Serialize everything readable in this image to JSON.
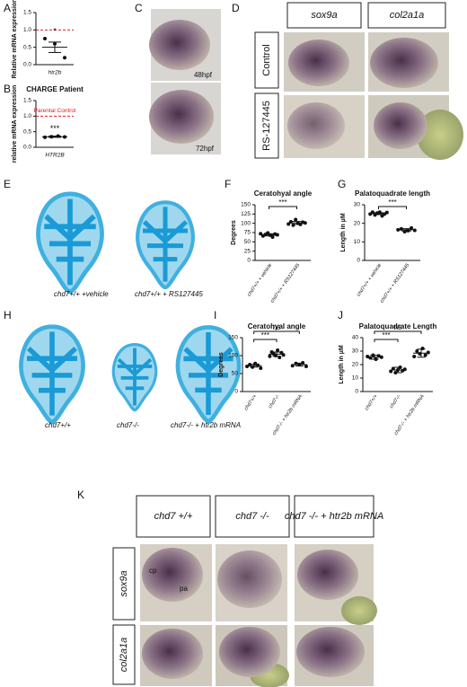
{
  "panel_labels": [
    "A",
    "B",
    "C",
    "D",
    "E",
    "F",
    "G",
    "H",
    "I",
    "J",
    "K"
  ],
  "panel_c": {
    "stages": [
      "48hpf",
      "72hpf"
    ]
  },
  "panel_d": {
    "columns": [
      "sox9a",
      "col2a1a"
    ],
    "rows": [
      "Control",
      "RS-127445"
    ]
  },
  "panel_e": {
    "labels": [
      "chd7+/+ +vehicle",
      "chd7+/+ + RS127445"
    ]
  },
  "panel_h": {
    "labels": [
      "chd7+/+",
      "chd7-/-",
      "chd7-/- + htr2b mRNA"
    ]
  },
  "panel_k": {
    "columns": [
      "chd7 +/+",
      "chd7 -/-",
      "chd7 -/- + htr2b mRNA"
    ],
    "rows": [
      "sox9a",
      "col2a1a"
    ],
    "annotations": [
      "cp",
      "pa"
    ]
  },
  "chart_data": [
    {
      "type": "dot",
      "y_label": "Relative mRNA expression",
      "categories": [
        "htr2b"
      ],
      "points": [
        [
          0.75,
          0.6,
          0.2
        ]
      ],
      "means": [
        0.5
      ],
      "errors": [
        0.15
      ],
      "color": "#111111",
      "ylim": [
        0,
        1.5
      ],
      "yticks": [
        {
          "value": 0,
          "label": "0.0"
        },
        {
          "value": 0.5,
          "label": "0.5"
        },
        {
          "value": 1,
          "label": "1.0"
        },
        {
          "value": 1.5,
          "label": "1.5"
        }
      ],
      "reference": {
        "value": 1,
        "color": "#e02020"
      },
      "brackets": [
        {
          "text": "*",
          "categories": [
            0
          ]
        }
      ]
    },
    {
      "type": "dot",
      "title": "CHARGE Patient",
      "y_label": "relative mRNA expression",
      "categories": [
        "HTR2B"
      ],
      "points": [
        [
          0.32,
          0.34,
          0.36,
          0.33
        ]
      ],
      "means": [
        0.34
      ],
      "errors": [
        0.02
      ],
      "color": "#111111",
      "ylim": [
        0,
        1.5
      ],
      "yticks": [
        {
          "value": 0,
          "label": "0.0"
        },
        {
          "value": 0.5,
          "label": "0.5"
        },
        {
          "value": 1,
          "label": "1.0"
        },
        {
          "value": 1.5,
          "label": "1.5"
        }
      ],
      "reference": {
        "value": 1,
        "label": "Parental Control",
        "color": "#e02020"
      },
      "brackets": [
        {
          "text": "***",
          "categories": [
            0
          ]
        }
      ]
    },
    {
      "type": "dot",
      "title": "Ceratohyal angle",
      "y_label": "Degrees",
      "categories": [
        "chd7+/+ + vehicle",
        "chd7+/+ + RS127445"
      ],
      "points": [
        [
          72,
          66,
          70,
          74,
          68,
          63,
          71,
          69
        ],
        [
          98,
          104,
          95,
          110,
          100,
          97,
          103,
          101
        ]
      ],
      "means": [
        69,
        101
      ],
      "errors": [
        3,
        4
      ],
      "color": "#111111",
      "ylim": [
        0,
        150
      ],
      "yticks": [
        0,
        25,
        50,
        75,
        100,
        125,
        150
      ],
      "brackets": [
        {
          "text": "***",
          "categories": [
            0,
            1
          ]
        }
      ]
    },
    {
      "type": "dot",
      "title": "Palatoquadrate length",
      "y_label": "Length in µM",
      "categories": [
        "chd7+/+ + vehicle",
        "chd7+/+ + RS127445"
      ],
      "points": [
        [
          25,
          26,
          24.5,
          25.5,
          26,
          24,
          25,
          25.8
        ],
        [
          16.5,
          17,
          15.5,
          16,
          17.5,
          16.2
        ]
      ],
      "means": [
        25.2,
        16.5
      ],
      "errors": [
        0.5,
        0.6
      ],
      "color": "#111111",
      "ylim": [
        0,
        30
      ],
      "yticks": [
        0,
        10,
        20,
        30
      ],
      "brackets": [
        {
          "text": "***",
          "categories": [
            0,
            1
          ]
        }
      ]
    },
    {
      "type": "dot",
      "title": "Ceratohyal angle",
      "y_label": "Degrees",
      "categories": [
        "chd7+/+",
        "chd7-/-",
        "chd7-/- + htr2b mRNA"
      ],
      "points": [
        [
          70,
          75,
          68,
          78,
          73,
          65
        ],
        [
          98,
          110,
          105,
          100,
          115,
          95,
          108,
          102
        ],
        [
          72,
          78,
          75,
          80,
          70
        ]
      ],
      "means": [
        72,
        104,
        75
      ],
      "errors": [
        4,
        6,
        4
      ],
      "color": "#111111",
      "ylim": [
        0,
        150
      ],
      "yticks": [
        0,
        50,
        100,
        150
      ],
      "brackets": [
        {
          "text": "***",
          "categories": [
            0,
            1
          ]
        },
        {
          "text": "ns",
          "categories": [
            0,
            2
          ]
        }
      ]
    },
    {
      "type": "dot",
      "title": "Palatoquadrate Length",
      "y_label": "Length in µM",
      "categories": [
        "chd7+/+",
        "chd7-/-",
        "chd7-/- + htr2b mRNA"
      ],
      "points": [
        [
          26,
          25,
          27,
          24,
          26.5,
          25.5
        ],
        [
          15,
          17,
          14,
          16,
          18,
          15.5,
          16.5
        ],
        [
          26,
          30,
          28,
          32,
          27,
          29
        ]
      ],
      "means": [
        25.5,
        16,
        28.5
      ],
      "errors": [
        1.5,
        2,
        3
      ],
      "color": "#111111",
      "ylim": [
        0,
        40
      ],
      "yticks": [
        0,
        10,
        20,
        30,
        40
      ],
      "brackets": [
        {
          "text": "***",
          "categories": [
            0,
            1
          ]
        },
        {
          "text": "ns",
          "categories": [
            0,
            2
          ]
        }
      ]
    }
  ]
}
